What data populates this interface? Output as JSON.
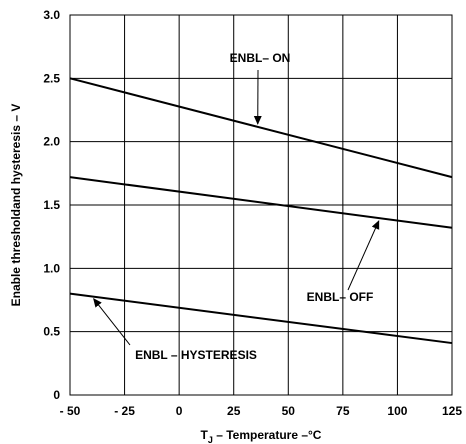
{
  "chart_data": {
    "type": "line",
    "xlabel": "T",
    "xlabel_sub": "J",
    "xlabel_rest": " –  Temperature –°C",
    "ylabel": "Enable thresholdand hysteresis – V",
    "xlim": [
      -50,
      125
    ],
    "ylim": [
      0,
      3.0
    ],
    "x_ticks": [
      -50,
      -25,
      0,
      25,
      50,
      75,
      100,
      125
    ],
    "x_tick_labels": [
      "- 50",
      "- 25",
      "0",
      "25",
      "50",
      "75",
      "100",
      "125"
    ],
    "y_ticks": [
      0,
      0.5,
      1.0,
      1.5,
      2.0,
      2.5,
      3.0
    ],
    "y_tick_labels": [
      "0",
      "0.5",
      "1.0",
      "1.5",
      "2.0",
      "2.5",
      "3.0"
    ],
    "grid": true,
    "series": [
      {
        "name": "ENBL– ON",
        "x": [
          -50,
          125
        ],
        "y": [
          2.5,
          1.72
        ]
      },
      {
        "name": "ENBL– OFF",
        "x": [
          -50,
          125
        ],
        "y": [
          1.72,
          1.32
        ]
      },
      {
        "name": "ENBL – HYSTERESIS",
        "x": [
          -50,
          125
        ],
        "y": [
          0.8,
          0.41
        ]
      }
    ],
    "annotations": [
      {
        "text": "ENBL– ON",
        "series": 0,
        "anchor": "above",
        "arrow_to_x": 36
      },
      {
        "text": "ENBL– OFF",
        "series": 1,
        "anchor": "below",
        "arrow_to_x": 92
      },
      {
        "text": "ENBL – HYSTERESIS",
        "series": 2,
        "anchor": "below",
        "arrow_to_x": -40
      }
    ]
  }
}
